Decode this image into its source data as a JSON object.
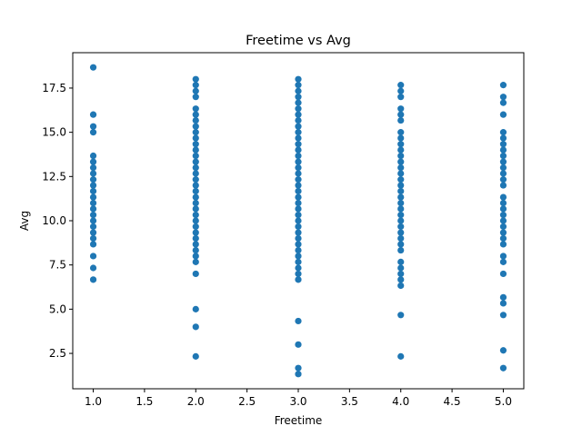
{
  "chart_data": {
    "type": "scatter",
    "title": "Freetime vs Avg",
    "xlabel": "Freetime",
    "ylabel": "Avg",
    "xlim": [
      0.8,
      5.2
    ],
    "ylim": [
      0.5,
      19.5
    ],
    "xticks": [
      1.0,
      1.5,
      2.0,
      2.5,
      3.0,
      3.5,
      4.0,
      4.5,
      5.0
    ],
    "xtick_labels": [
      "1.0",
      "1.5",
      "2.0",
      "2.5",
      "3.0",
      "3.5",
      "4.0",
      "4.5",
      "5.0"
    ],
    "yticks": [
      2.5,
      5.0,
      7.5,
      10.0,
      12.5,
      15.0,
      17.5
    ],
    "ytick_labels": [
      "2.5",
      "5.0",
      "7.5",
      "10.0",
      "12.5",
      "15.0",
      "17.5"
    ],
    "grid": false,
    "marker_color": "#1f77b4",
    "series": [
      {
        "points": [
          {
            "x": 1.0,
            "y": [
              6.67,
              7.33,
              8.0,
              8.67,
              9.0,
              9.33,
              9.67,
              10.0,
              10.33,
              10.67,
              11.0,
              11.33,
              11.67,
              12.0,
              12.33,
              12.67,
              13.0,
              13.33,
              13.67,
              15.0,
              15.33,
              16.0,
              18.67
            ]
          },
          {
            "x": 2.0,
            "y": [
              2.33,
              4.0,
              5.0,
              7.0,
              7.67,
              8.0,
              8.33,
              8.67,
              9.0,
              9.33,
              9.67,
              10.0,
              10.33,
              10.67,
              11.0,
              11.33,
              11.67,
              12.0,
              12.33,
              12.67,
              13.0,
              13.33,
              13.67,
              14.0,
              14.33,
              14.67,
              15.0,
              15.33,
              15.67,
              16.0,
              16.33,
              17.0,
              17.33,
              17.67,
              18.0
            ]
          },
          {
            "x": 3.0,
            "y": [
              1.33,
              1.67,
              3.0,
              4.33,
              6.67,
              7.0,
              7.33,
              7.67,
              8.0,
              8.33,
              8.67,
              9.0,
              9.33,
              9.67,
              10.0,
              10.33,
              10.67,
              11.0,
              11.33,
              11.67,
              12.0,
              12.33,
              12.67,
              13.0,
              13.33,
              13.67,
              14.0,
              14.33,
              14.67,
              15.0,
              15.33,
              15.67,
              16.0,
              16.33,
              16.67,
              17.0,
              17.33,
              17.67,
              18.0
            ]
          },
          {
            "x": 4.0,
            "y": [
              2.33,
              4.67,
              6.33,
              6.67,
              7.0,
              7.33,
              7.67,
              8.33,
              8.67,
              9.0,
              9.33,
              9.67,
              10.0,
              10.33,
              10.67,
              11.0,
              11.33,
              11.67,
              12.0,
              12.33,
              12.67,
              13.0,
              13.33,
              13.67,
              14.0,
              14.33,
              14.67,
              15.0,
              15.67,
              16.0,
              16.33,
              17.0,
              17.33,
              17.67
            ]
          },
          {
            "x": 5.0,
            "y": [
              1.67,
              2.67,
              4.67,
              5.33,
              5.67,
              7.0,
              7.67,
              8.0,
              8.67,
              9.0,
              9.33,
              9.67,
              10.0,
              10.33,
              10.67,
              11.0,
              11.33,
              12.0,
              12.33,
              12.67,
              13.0,
              13.33,
              13.67,
              14.0,
              14.33,
              14.67,
              15.0,
              16.0,
              16.67,
              17.0,
              17.67
            ]
          }
        ]
      }
    ]
  }
}
